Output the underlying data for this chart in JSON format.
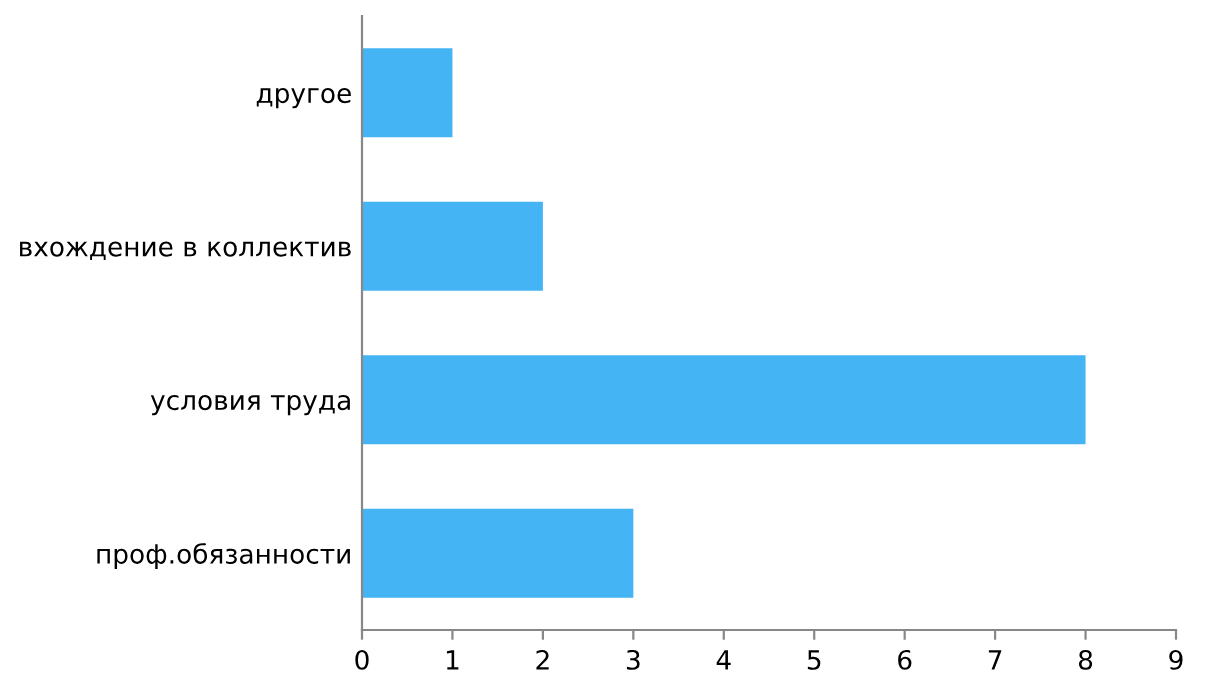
{
  "chart_data": {
    "type": "bar",
    "orientation": "horizontal",
    "categories": [
      "другое",
      "вхождение в коллектив",
      "условия труда",
      "проф.обязанности"
    ],
    "values": [
      1,
      2,
      8,
      3
    ],
    "color": "#45b4f5",
    "xlim": [
      0,
      9
    ],
    "xticks": [
      0,
      1,
      2,
      3,
      4,
      5,
      6,
      7,
      8,
      9
    ],
    "grid": false,
    "legend": false
  }
}
